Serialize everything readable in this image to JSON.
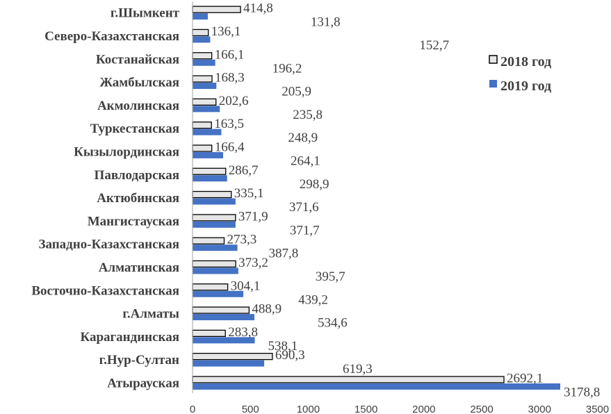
{
  "chart_data": {
    "type": "bar",
    "orientation": "horizontal",
    "categories": [
      "г.Шымкент",
      "Северо-Казахстанская",
      "Костанайская",
      "Жамбылская",
      "Акмолинская",
      "Туркестанская",
      "Кызылординская",
      "Павлодарская",
      "Актюбинская",
      "Мангистауская",
      "Западно-Казахстанская",
      "Алматинская",
      "Восточно-Казахстанская",
      "г.Алматы",
      "Карагандинская",
      "г.Нур-Султан",
      "Атырауская"
    ],
    "series": [
      {
        "name": "2018 год",
        "color": "#e6e6e6",
        "stroke": "#000000",
        "values": [
          414.8,
          136.1,
          166.1,
          168.3,
          202.6,
          163.5,
          166.4,
          286.7,
          335.1,
          371.9,
          273.3,
          373.2,
          304.1,
          488.9,
          283.8,
          690.3,
          2692.1
        ],
        "labels": [
          "414,8",
          "136,1",
          "166,1",
          "168,3",
          "202,6",
          "163,5",
          "166,4",
          "286,7",
          "335,1",
          "371,9",
          "273,3",
          "373,2",
          "304,1",
          "488,9",
          "283,8",
          "690,3",
          "2692,1"
        ]
      },
      {
        "name": "2019 год",
        "color": "#4472c4",
        "stroke": "#4472c4",
        "values": [
          131.8,
          152.7,
          196.2,
          205.9,
          235.8,
          248.9,
          264.1,
          298.9,
          371.6,
          371.7,
          387.8,
          395.7,
          439.2,
          534.6,
          538.1,
          619.3,
          3178.8
        ],
        "labels": [
          "131,8",
          "152,7",
          "196,2",
          "205,9",
          "235,8",
          "248,9",
          "264,1",
          "298,9",
          "371,6",
          "371,7",
          "387,8",
          "395,7",
          "439,2",
          "534,6",
          "538,1",
          "619,3",
          "3178,8"
        ]
      }
    ],
    "xlim": [
      0,
      3500
    ],
    "xticks": [
      0,
      500,
      1000,
      1500,
      2000,
      2500,
      3000,
      3500
    ],
    "xtick_labels": [
      "0",
      "500",
      "1000",
      "1500",
      "2000",
      "2500",
      "3000",
      "3500"
    ],
    "grid": false,
    "legend_position": "right"
  }
}
